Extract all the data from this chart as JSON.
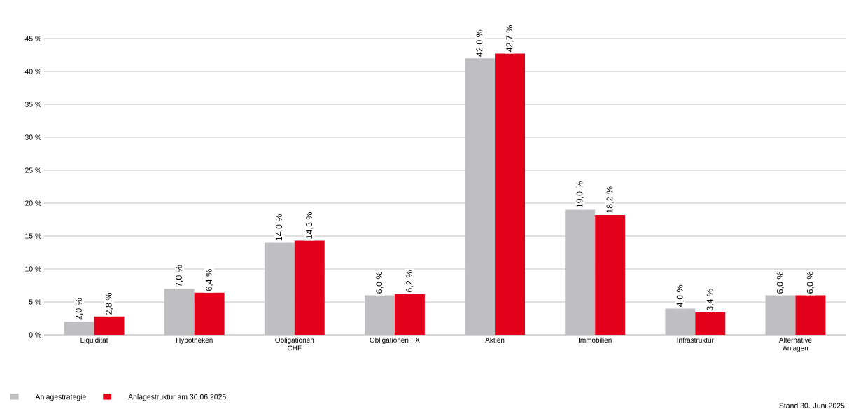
{
  "chart_data": {
    "type": "bar",
    "categories": [
      "Liquidität",
      "Hypotheken",
      "Obligationen CHF",
      "Obligationen FX",
      "Aktien",
      "Immobilien",
      "Infrastruktur",
      "Alternative Anlagen"
    ],
    "series": [
      {
        "name": "Anlagestrategie",
        "color": "#bfbfc1",
        "values": [
          2.0,
          7.0,
          14.0,
          6.0,
          42.0,
          19.0,
          4.0,
          6.0
        ],
        "value_labels": [
          "2,0 %",
          "7,0 %",
          "14,0 %",
          "6,0 %",
          "42,0 %",
          "19,0 %",
          "4,0 %",
          "6,0 %"
        ]
      },
      {
        "name": "Anlagestruktur am 30.06.2025",
        "color": "#e2001a",
        "values": [
          2.8,
          6.4,
          14.3,
          6.2,
          42.7,
          18.2,
          3.4,
          6.0
        ],
        "value_labels": [
          "2,8 %",
          "6,4 %",
          "14,3 %",
          "6,2 %",
          "42,7 %",
          "18,2 %",
          "3,4 %",
          "6,0 %"
        ]
      }
    ],
    "ylim": [
      0,
      45
    ],
    "yticks": [
      {
        "value": 0,
        "label": "0 %"
      },
      {
        "value": 5,
        "label": "5 %"
      },
      {
        "value": 10,
        "label": "10 %"
      },
      {
        "value": 15,
        "label": "15 %"
      },
      {
        "value": 20,
        "label": "20 %"
      },
      {
        "value": 25,
        "label": "25 %"
      },
      {
        "value": 30,
        "label": "30 %"
      },
      {
        "value": 35,
        "label": "35 %"
      },
      {
        "value": 40,
        "label": "40 %"
      },
      {
        "value": 45,
        "label": "45 %"
      }
    ],
    "grid": "y",
    "legend": "bottom left",
    "annotations": [
      "Stand 30. Juni 2025."
    ]
  }
}
